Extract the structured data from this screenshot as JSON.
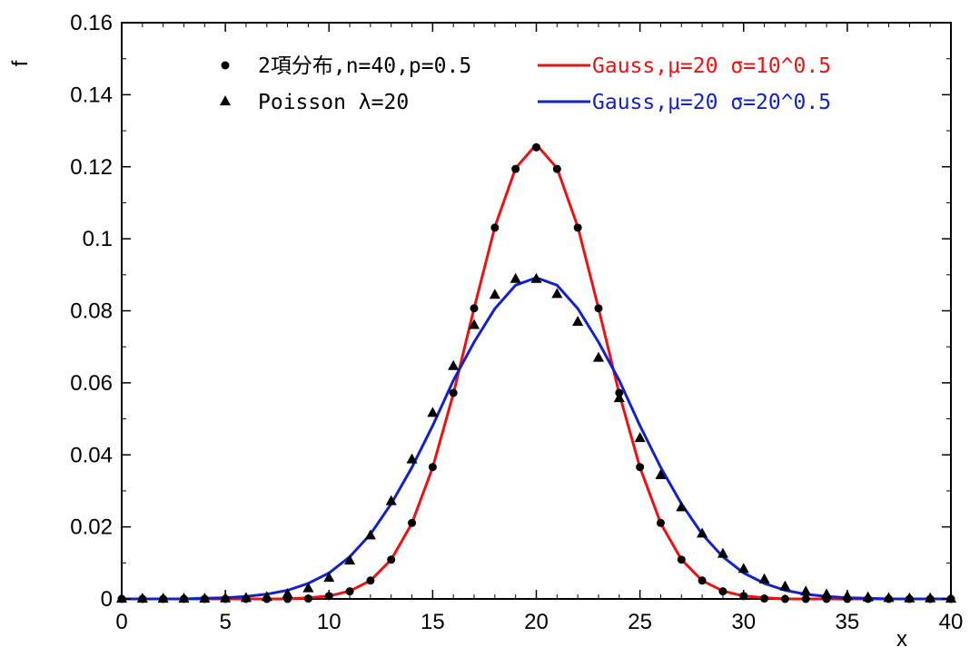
{
  "chart_data": {
    "type": "scatter",
    "title": "",
    "xlabel": "x",
    "ylabel": "f",
    "xlim": [
      0,
      40
    ],
    "ylim": [
      0,
      0.16
    ],
    "x_ticks": [
      "0",
      "5",
      "10",
      "15",
      "20",
      "25",
      "30",
      "35",
      "40"
    ],
    "y_ticks": [
      "0",
      "0.02",
      "0.04",
      "0.06",
      "0.08",
      "0.1",
      "0.12",
      "0.14",
      "0.16"
    ],
    "grid": false,
    "legend_placement": "top",
    "series": [
      {
        "name": "2項分布,n=40,p=0.5",
        "kind": "points",
        "marker": "circle",
        "color": "#000000",
        "x": [
          0,
          1,
          2,
          3,
          4,
          5,
          6,
          7,
          8,
          9,
          10,
          11,
          12,
          13,
          14,
          15,
          16,
          17,
          18,
          19,
          20,
          21,
          22,
          23,
          24,
          25,
          26,
          27,
          28,
          29,
          30,
          31,
          32,
          33,
          34,
          35,
          36,
          37,
          38,
          39,
          40
        ],
        "y": [
          0,
          0,
          0,
          0,
          0,
          0,
          0,
          0,
          0,
          0.0001,
          0.0008,
          0.0021,
          0.0051,
          0.0109,
          0.0211,
          0.0366,
          0.0572,
          0.0807,
          0.1031,
          0.1194,
          0.1254,
          0.1194,
          0.1031,
          0.0807,
          0.0572,
          0.0366,
          0.0211,
          0.0109,
          0.0051,
          0.0021,
          0.0008,
          0.0001,
          0,
          0,
          0,
          0,
          0,
          0,
          0,
          0,
          0
        ]
      },
      {
        "name": "Poisson λ=20",
        "kind": "points",
        "marker": "triangle",
        "color": "#000000",
        "x": [
          0,
          1,
          2,
          3,
          4,
          5,
          6,
          7,
          8,
          9,
          10,
          11,
          12,
          13,
          14,
          15,
          16,
          17,
          18,
          19,
          20,
          21,
          22,
          23,
          24,
          25,
          26,
          27,
          28,
          29,
          30,
          31,
          32,
          33,
          34,
          35,
          36,
          37,
          38,
          39,
          40
        ],
        "y": [
          0,
          0,
          0,
          0,
          0,
          0.0001,
          0.0002,
          0.0005,
          0.0013,
          0.0029,
          0.0058,
          0.0106,
          0.0176,
          0.0271,
          0.0387,
          0.0516,
          0.0646,
          0.076,
          0.0844,
          0.0888,
          0.0888,
          0.0846,
          0.0769,
          0.0669,
          0.0557,
          0.0446,
          0.0343,
          0.0254,
          0.0181,
          0.0125,
          0.0083,
          0.0054,
          0.0034,
          0.002,
          0.0012,
          0.0007,
          0.0004,
          0.0002,
          0.0001,
          0.0001,
          0
        ]
      },
      {
        "name": "Gauss,μ=20 σ=10^0.5",
        "kind": "line",
        "color": "#ee1111",
        "x": [
          0,
          1,
          2,
          3,
          4,
          5,
          6,
          7,
          8,
          9,
          10,
          11,
          12,
          13,
          14,
          15,
          16,
          17,
          18,
          19,
          20,
          21,
          22,
          23,
          24,
          25,
          26,
          27,
          28,
          29,
          30,
          31,
          32,
          33,
          34,
          35,
          36,
          37,
          38,
          39,
          40
        ],
        "y": [
          0,
          0,
          0,
          0,
          0,
          0,
          0,
          0,
          0,
          0.0003,
          0.0008,
          0.0022,
          0.0051,
          0.0109,
          0.021,
          0.0365,
          0.057,
          0.0807,
          0.1033,
          0.1196,
          0.1262,
          0.1196,
          0.1033,
          0.0807,
          0.057,
          0.0365,
          0.021,
          0.0109,
          0.0051,
          0.0022,
          0.0008,
          0.0003,
          0,
          0,
          0,
          0,
          0,
          0,
          0,
          0,
          0
        ]
      },
      {
        "name": "Gauss,μ=20 σ=20^0.5",
        "kind": "line",
        "color": "#1122cc",
        "x": [
          0,
          1,
          2,
          3,
          4,
          5,
          6,
          7,
          8,
          9,
          10,
          11,
          12,
          13,
          14,
          15,
          16,
          17,
          18,
          19,
          20,
          21,
          22,
          23,
          24,
          25,
          26,
          27,
          28,
          29,
          30,
          31,
          32,
          33,
          34,
          35,
          36,
          37,
          38,
          39,
          40
        ],
        "y": [
          0,
          0,
          0,
          0,
          0.0002,
          0.0003,
          0.0007,
          0.0013,
          0.0024,
          0.0043,
          0.0072,
          0.0117,
          0.018,
          0.0264,
          0.0365,
          0.0481,
          0.0607,
          0.0713,
          0.0806,
          0.0871,
          0.0892,
          0.0871,
          0.0806,
          0.0713,
          0.0607,
          0.0481,
          0.0365,
          0.0264,
          0.018,
          0.0117,
          0.0072,
          0.0043,
          0.0024,
          0.0013,
          0.0007,
          0.0003,
          0.0002,
          0,
          0,
          0,
          0
        ]
      }
    ]
  }
}
